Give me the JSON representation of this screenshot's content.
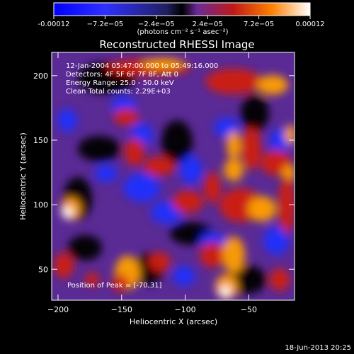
{
  "chart_data": {
    "type": "heatmap",
    "title": "Reconstructed RHESSI Image",
    "xlabel": "Heliocentric X (arcsec)",
    "ylabel": "Heliocentric Y (arcsec)",
    "xlim": [
      -205,
      -14
    ],
    "ylim": [
      26,
      218
    ],
    "x_ticks": [
      -200,
      -150,
      -100,
      -50
    ],
    "y_ticks": [
      50,
      100,
      150,
      200
    ],
    "colorbar": {
      "range": [
        -0.00012,
        0.00012
      ],
      "ticks": [
        {
          "value": -0.00012,
          "label": "-0.00012"
        },
        {
          "value": -7.2e-05,
          "label": "−7.2e−05"
        },
        {
          "value": -2.4e-05,
          "label": "−2.4e−05"
        },
        {
          "value": 2.4e-05,
          "label": "2.4e−05"
        },
        {
          "value": 7.2e-05,
          "label": "7.2e−05"
        },
        {
          "value": 0.00012,
          "label": "0.00012"
        }
      ],
      "unit_label": "(photons cm⁻² s⁻¹ asec⁻²)"
    },
    "annotations": [
      "12-Jan-2004 05:47:00.000 to 05:49:16.000",
      "Detectors: 4F 5F 6F 7F 8F, Att 0",
      "Energy Range: 25.0 - 50.0 keV",
      "Clean     Total counts: 2.29E+03"
    ],
    "peak_label": "Position of Peak = [-70,31]",
    "peak_position": [
      -70,
      31
    ],
    "colors": {
      "negative": "#2030ff",
      "zero": "#000000",
      "low_positive": "#7030b0",
      "mid_positive": "#d02010",
      "high_positive": "#ffa000",
      "max_positive": "#ffffff"
    }
  },
  "footer_timestamp": "18-Jun-2013 20:25"
}
